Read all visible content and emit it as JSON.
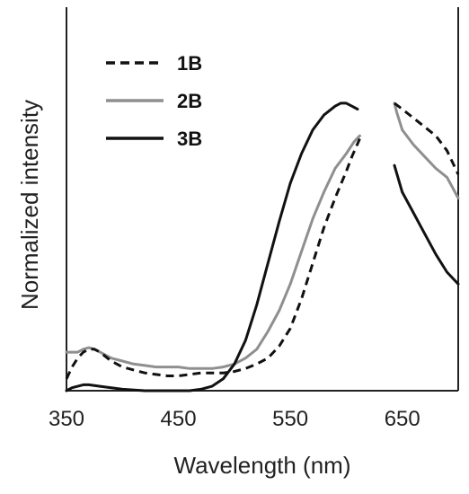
{
  "chart_data": {
    "type": "line",
    "title": "",
    "xlabel": "Wavelength (nm)",
    "ylabel": "Normalized intensity",
    "xlim": [
      350,
      700
    ],
    "ylim": [
      0,
      1
    ],
    "xticks": [
      350,
      450,
      550,
      650
    ],
    "xtick_labels": [
      "350",
      "450",
      "550",
      "650"
    ],
    "y_tick_labels_shown": false,
    "grid": false,
    "legend_position": "top-left",
    "series": [
      {
        "name": "1B",
        "color": "#111111",
        "dash": "dashed",
        "segments": [
          [
            [
              350,
              0.04
            ],
            [
              355,
              0.08
            ],
            [
              360,
              0.11
            ],
            [
              365,
              0.13
            ],
            [
              370,
              0.14
            ],
            [
              375,
              0.14
            ],
            [
              380,
              0.13
            ],
            [
              390,
              0.1
            ],
            [
              400,
              0.08
            ],
            [
              410,
              0.07
            ],
            [
              420,
              0.06
            ],
            [
              430,
              0.055
            ],
            [
              440,
              0.05
            ],
            [
              450,
              0.05
            ],
            [
              460,
              0.055
            ],
            [
              470,
              0.06
            ],
            [
              480,
              0.06
            ],
            [
              490,
              0.06
            ],
            [
              500,
              0.065
            ],
            [
              510,
              0.075
            ],
            [
              520,
              0.09
            ],
            [
              530,
              0.11
            ],
            [
              540,
              0.15
            ],
            [
              550,
              0.21
            ],
            [
              560,
              0.31
            ],
            [
              570,
              0.43
            ],
            [
              580,
              0.55
            ],
            [
              590,
              0.65
            ],
            [
              600,
              0.74
            ],
            [
              605,
              0.79
            ],
            [
              612,
              0.85
            ]
          ],
          [
            [
              643,
              0.97
            ],
            [
              650,
              0.95
            ],
            [
              660,
              0.92
            ],
            [
              670,
              0.89
            ],
            [
              680,
              0.86
            ],
            [
              690,
              0.81
            ],
            [
              700,
              0.73
            ]
          ]
        ]
      },
      {
        "name": "2B",
        "color": "#8f8f8f",
        "dash": "solid",
        "segments": [
          [
            [
              350,
              0.13
            ],
            [
              360,
              0.13
            ],
            [
              365,
              0.14
            ],
            [
              370,
              0.145
            ],
            [
              375,
              0.14
            ],
            [
              380,
              0.13
            ],
            [
              390,
              0.11
            ],
            [
              400,
              0.1
            ],
            [
              410,
              0.09
            ],
            [
              420,
              0.085
            ],
            [
              430,
              0.08
            ],
            [
              440,
              0.08
            ],
            [
              450,
              0.08
            ],
            [
              460,
              0.075
            ],
            [
              470,
              0.075
            ],
            [
              480,
              0.075
            ],
            [
              490,
              0.08
            ],
            [
              500,
              0.09
            ],
            [
              510,
              0.11
            ],
            [
              520,
              0.14
            ],
            [
              530,
              0.2
            ],
            [
              540,
              0.27
            ],
            [
              550,
              0.36
            ],
            [
              560,
              0.47
            ],
            [
              570,
              0.58
            ],
            [
              580,
              0.67
            ],
            [
              590,
              0.75
            ],
            [
              600,
              0.8
            ],
            [
              607,
              0.84
            ],
            [
              612,
              0.86
            ]
          ],
          [
            [
              643,
              0.97
            ],
            [
              645,
              0.94
            ],
            [
              650,
              0.88
            ],
            [
              660,
              0.83
            ],
            [
              670,
              0.79
            ],
            [
              680,
              0.75
            ],
            [
              690,
              0.72
            ],
            [
              700,
              0.65
            ]
          ]
        ]
      },
      {
        "name": "3B",
        "color": "#111111",
        "dash": "solid",
        "segments": [
          [
            [
              350,
              0.0
            ],
            [
              355,
              0.01
            ],
            [
              360,
              0.015
            ],
            [
              365,
              0.02
            ],
            [
              370,
              0.02
            ],
            [
              380,
              0.015
            ],
            [
              390,
              0.01
            ],
            [
              400,
              0.005
            ],
            [
              420,
              0.0
            ],
            [
              440,
              0.0
            ],
            [
              460,
              0.0
            ],
            [
              470,
              0.005
            ],
            [
              480,
              0.015
            ],
            [
              490,
              0.04
            ],
            [
              500,
              0.09
            ],
            [
              510,
              0.17
            ],
            [
              520,
              0.29
            ],
            [
              530,
              0.43
            ],
            [
              540,
              0.57
            ],
            [
              550,
              0.7
            ],
            [
              560,
              0.8
            ],
            [
              570,
              0.88
            ],
            [
              580,
              0.93
            ],
            [
              590,
              0.96
            ],
            [
              595,
              0.97
            ],
            [
              600,
              0.97
            ],
            [
              605,
              0.96
            ],
            [
              610,
              0.95
            ]
          ],
          [
            [
              643,
              0.76
            ],
            [
              650,
              0.67
            ],
            [
              660,
              0.6
            ],
            [
              670,
              0.53
            ],
            [
              680,
              0.46
            ],
            [
              690,
              0.4
            ],
            [
              700,
              0.36
            ]
          ]
        ]
      }
    ]
  }
}
